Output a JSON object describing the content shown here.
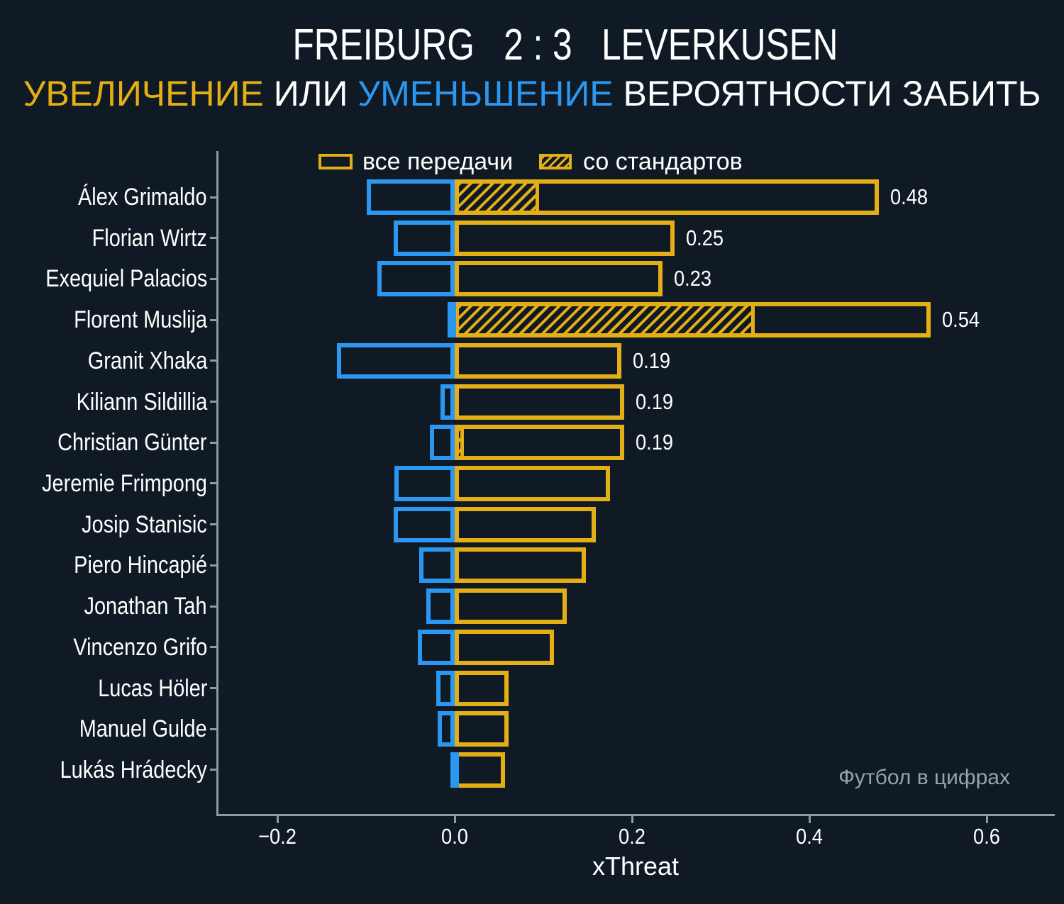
{
  "title": "FREIBURG   2 : 3   LEVERKUSEN",
  "subtitle": {
    "increase": "УВЕЛИЧЕНИЕ",
    "or": " ИЛИ ",
    "decrease": "УМЕНЬШЕНИЕ",
    "rest": " ВЕРОЯТНОСТИ ЗАБИТЬ"
  },
  "legend": {
    "items": [
      {
        "label": "все передачи",
        "style": "outline"
      },
      {
        "label": "со стандартов",
        "style": "hatched"
      }
    ]
  },
  "watermark": "Футбол в цифрах",
  "colors": {
    "background": "#0f1a24",
    "positive": "#e4af16",
    "negative": "#2b97f0",
    "text": "#ffffff",
    "axis": "#8c9ba6",
    "watermark": "#98a2ac"
  },
  "chart_data": {
    "type": "bar",
    "orientation": "horizontal",
    "title": "FREIBURG 2 : 3 LEVERKUSEN",
    "subtitle": "УВЕЛИЧЕНИЕ ИЛИ УМЕНЬШЕНИЕ ВЕРОЯТНОСТИ ЗАБИТЬ",
    "xlabel": "xThreat",
    "xlim": [
      -0.27,
      0.68
    ],
    "x_ticks": [
      -0.2,
      0.0,
      0.2,
      0.4,
      0.6
    ],
    "x_tick_labels": [
      "−0.2",
      "0.0",
      "0.2",
      "0.4",
      "0.6"
    ],
    "grid": false,
    "legend_position": "top",
    "players": [
      {
        "name": "Álex Grimaldo",
        "decrease": -0.099,
        "all_passes": 0.478,
        "set_pieces": 0.095,
        "value_label": "0.48"
      },
      {
        "name": "Florian Wirtz",
        "decrease": -0.069,
        "all_passes": 0.248,
        "set_pieces": 0,
        "value_label": "0.25"
      },
      {
        "name": "Exequiel Palacios",
        "decrease": -0.087,
        "all_passes": 0.234,
        "set_pieces": 0,
        "value_label": "0.23"
      },
      {
        "name": "Florent Muslija",
        "decrease": -0.008,
        "all_passes": 0.537,
        "set_pieces": 0.338,
        "value_label": "0.54"
      },
      {
        "name": "Granit Xhaka",
        "decrease": -0.133,
        "all_passes": 0.188,
        "set_pieces": 0,
        "value_label": "0.19"
      },
      {
        "name": "Kiliann Sildillia",
        "decrease": -0.016,
        "all_passes": 0.191,
        "set_pieces": 0,
        "value_label": "0.19"
      },
      {
        "name": "Christian Günter",
        "decrease": -0.028,
        "all_passes": 0.191,
        "set_pieces": 0.01,
        "value_label": "0.19"
      },
      {
        "name": "Jeremie Frimpong",
        "decrease": -0.068,
        "all_passes": 0.175,
        "set_pieces": 0,
        "value_label": ""
      },
      {
        "name": "Josip Stanisic",
        "decrease": -0.069,
        "all_passes": 0.159,
        "set_pieces": 0,
        "value_label": ""
      },
      {
        "name": "Piero Hincapié",
        "decrease": -0.04,
        "all_passes": 0.148,
        "set_pieces": 0,
        "value_label": ""
      },
      {
        "name": "Jonathan Tah",
        "decrease": -0.032,
        "all_passes": 0.126,
        "set_pieces": 0,
        "value_label": ""
      },
      {
        "name": "Vincenzo Grifo",
        "decrease": -0.042,
        "all_passes": 0.112,
        "set_pieces": 0,
        "value_label": ""
      },
      {
        "name": "Lucas Höler",
        "decrease": -0.021,
        "all_passes": 0.061,
        "set_pieces": 0,
        "value_label": ""
      },
      {
        "name": "Manuel Gulde",
        "decrease": -0.019,
        "all_passes": 0.061,
        "set_pieces": 0,
        "value_label": ""
      },
      {
        "name": "Lukás Hrádecky",
        "decrease": -0.005,
        "all_passes": 0.057,
        "set_pieces": 0,
        "value_label": ""
      }
    ]
  }
}
